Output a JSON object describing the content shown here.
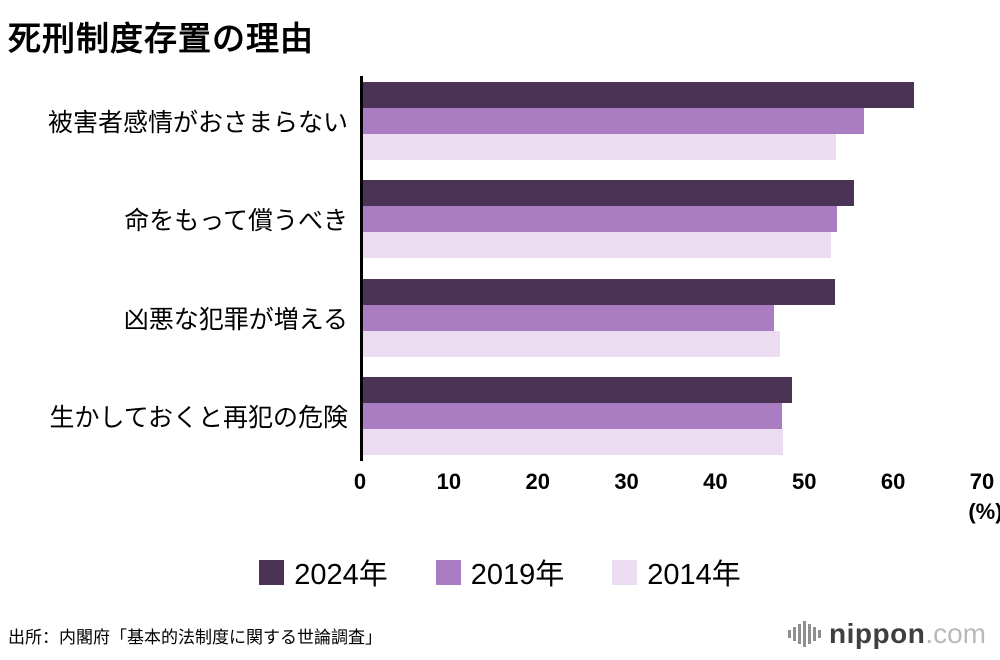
{
  "title": "死刑制度存置の理由",
  "chart_data": {
    "type": "bar",
    "orientation": "horizontal",
    "title": "死刑制度存置の理由",
    "categories": [
      "被害者感情がおさまらない",
      "命をもって償うべき",
      "凶悪な犯罪が増える",
      "生かしておくと再犯の危険"
    ],
    "series": [
      {
        "name": "2024年",
        "color": "#4b3355",
        "values": [
          62.3,
          55.5,
          53.4,
          48.5
        ]
      },
      {
        "name": "2019年",
        "color": "#aa7dc2",
        "values": [
          56.7,
          53.6,
          46.5,
          47.4
        ]
      },
      {
        "name": "2014年",
        "color": "#ebdcf2",
        "values": [
          53.5,
          52.9,
          47.2,
          47.5
        ]
      }
    ],
    "xlim": [
      0,
      70
    ],
    "xticks": [
      0,
      10,
      20,
      30,
      40,
      50,
      60,
      70
    ],
    "x_unit_label": "(%)",
    "legend_position": "bottom",
    "grid": false
  },
  "source": "出所：内閣府「基本的法制度に関する世論調査」",
  "logo": {
    "name": "nippon",
    "suffix": ".com",
    "mark": "waveform-icon"
  }
}
